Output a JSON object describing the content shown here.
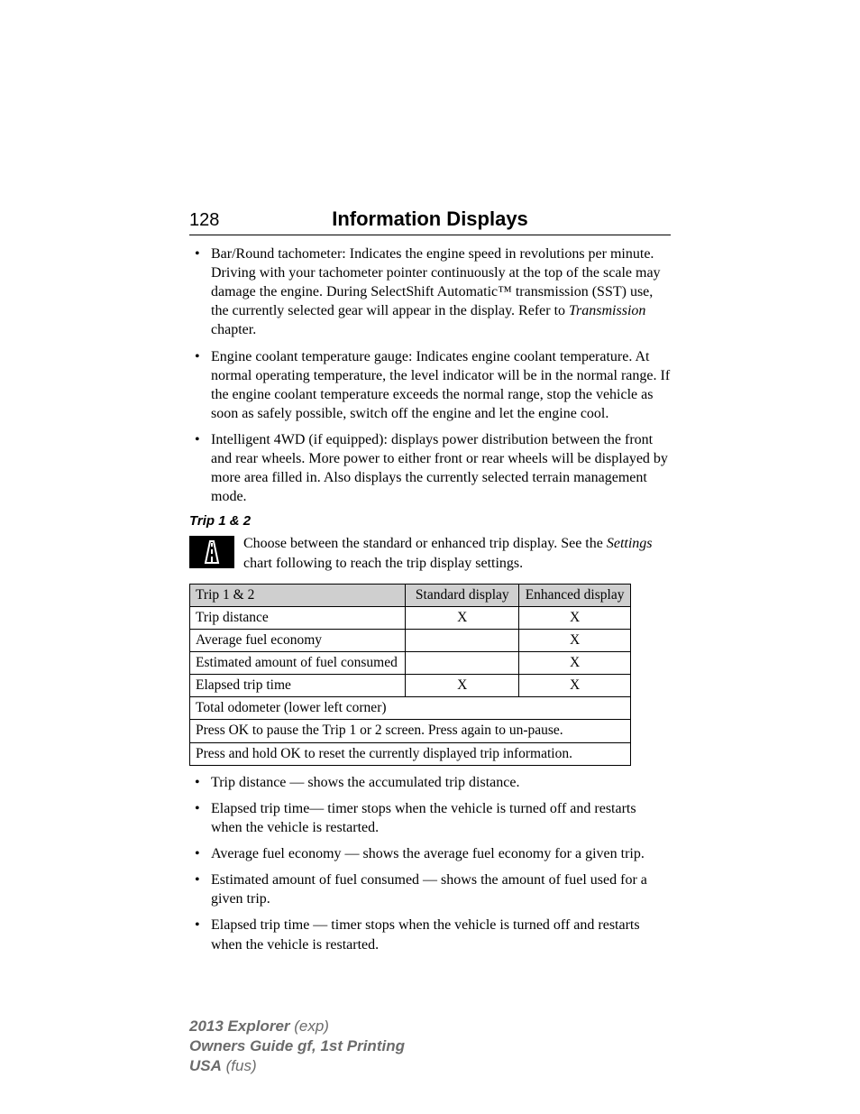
{
  "page_number": "128",
  "chapter_title": "Information Displays",
  "top_bullets": [
    "Bar/Round tachometer: Indicates the engine speed in revolutions per minute. Driving with your tachometer pointer continuously at the top of the scale may damage the engine. During SelectShift Automatic™ transmission (SST) use, the currently selected gear will appear in the display. Refer to ",
    "Engine coolant temperature gauge: Indicates engine coolant temperature. At normal operating temperature, the level indicator will be in the normal range. If the engine coolant temperature exceeds the normal range, stop the vehicle as soon as safely possible, switch off the engine and let the engine cool.",
    "Intelligent 4WD (if equipped): displays power distribution between the front and rear wheels. More power to either front or rear wheels will be displayed by more area filled in. Also displays the currently selected terrain management mode."
  ],
  "bullet1_italic": "Transmission",
  "bullet1_tail": " chapter.",
  "section_heading": "Trip 1 & 2",
  "icon_intro_pre": "Choose between the standard or enhanced trip display. See the ",
  "icon_intro_italic": "Settings",
  "icon_intro_post": " chart following to reach the trip display settings.",
  "table": {
    "headers": [
      "Trip 1 & 2",
      "Standard display",
      "Enhanced display"
    ],
    "rows": [
      {
        "label": "Trip distance",
        "std": "X",
        "enh": "X"
      },
      {
        "label": "Average fuel economy",
        "std": "",
        "enh": "X"
      },
      {
        "label": "Estimated amount of fuel consumed",
        "std": "",
        "enh": "X"
      },
      {
        "label": "Elapsed trip time",
        "std": "X",
        "enh": "X"
      }
    ],
    "span_rows": [
      "Total odometer (lower left corner)",
      "Press OK to pause the Trip 1 or 2 screen. Press again to un-pause.",
      "Press and hold OK to reset the currently displayed trip information."
    ],
    "col_widths": {
      "label": "240px",
      "std": "126px",
      "enh": "124px"
    }
  },
  "bottom_bullets": [
    "Trip distance — shows the accumulated trip distance.",
    "Elapsed trip time— timer stops when the vehicle is turned off and restarts when the vehicle is restarted.",
    "Average fuel economy — shows the average fuel economy for a given trip.",
    "Estimated amount of fuel consumed — shows the amount of fuel used for a given trip.",
    "Elapsed trip time — timer stops when the vehicle is turned off and restarts when the vehicle is restarted."
  ],
  "footer": {
    "line1_strong": "2013 Explorer",
    "line1_rest": " (exp)",
    "line2": "Owners Guide gf, 1st Printing",
    "line3_strong": "USA",
    "line3_rest": " (fus)"
  },
  "colors": {
    "header_gray": "#cfcfcf",
    "footer_gray": "#6b6b6b"
  }
}
